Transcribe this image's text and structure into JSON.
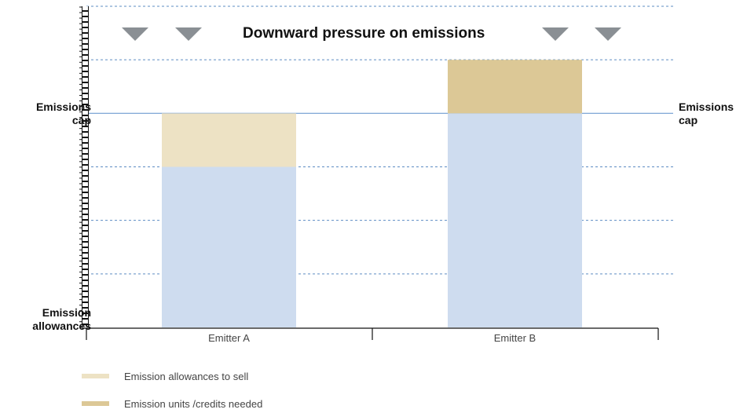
{
  "title": "Downward pressure on emissions",
  "left_labels": {
    "cap": [
      "Emissions",
      "cap"
    ],
    "allowances": [
      "Emission",
      "allowances"
    ]
  },
  "right_labels": {
    "cap": [
      "Emissions",
      "cap"
    ]
  },
  "colors": {
    "base": "#cedcef",
    "to_sell": "#ede2c4",
    "needed": "#dcc896",
    "cap_line": "#6f9bd1",
    "grid": "#5d8cc3",
    "arrow": "#8a8f94",
    "axis": "#111111"
  },
  "chart_data": {
    "type": "bar",
    "categories": [
      "Emitter A",
      "Emitter B"
    ],
    "cap": 4,
    "ylim": [
      0,
      6
    ],
    "series": [
      {
        "name": "",
        "values": [
          3,
          4
        ]
      },
      {
        "name": "Emission allowances to sell",
        "values": [
          1,
          0
        ]
      },
      {
        "name": "Emission units / credits needed",
        "values": [
          0,
          1
        ]
      }
    ]
  },
  "legend": [
    {
      "label": "Emission allowances to sell",
      "color": "#ede2c4"
    },
    {
      "label": "Emission units /credits needed",
      "color": "#dcc896"
    }
  ],
  "arrows": {
    "count_left": 2,
    "count_right": 2,
    "icon": "down-triangle-icon"
  }
}
